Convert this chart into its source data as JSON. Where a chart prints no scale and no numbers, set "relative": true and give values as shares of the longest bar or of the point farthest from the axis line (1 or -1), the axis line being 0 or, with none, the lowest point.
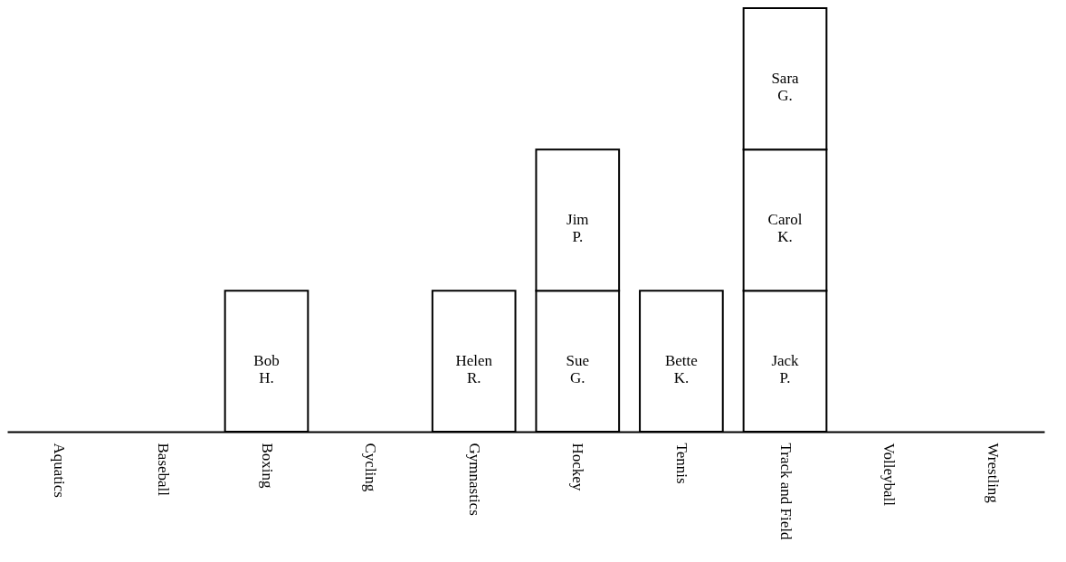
{
  "chart_data": {
    "type": "bar",
    "stacked": true,
    "relative": true,
    "categories": [
      "Aquatics",
      "Baseball",
      "Boxing",
      "Cycling",
      "Gymnastics",
      "Hockey",
      "Tennis",
      "Track and Field",
      "Volleyball",
      "Wrestling"
    ],
    "series": [
      {
        "color": "#ffffff",
        "values": [
          null,
          null,
          0.333,
          null,
          0.333,
          0.333,
          0.333,
          0.333,
          null,
          null
        ]
      },
      {
        "color": "#ffffff",
        "values": [
          null,
          null,
          null,
          null,
          null,
          0.333,
          null,
          0.333,
          null,
          null
        ]
      },
      {
        "color": "#ffffff",
        "values": [
          null,
          null,
          null,
          null,
          null,
          null,
          null,
          0.334,
          null,
          null
        ]
      }
    ],
    "annotations": [
      "Bob H.",
      "Helen R.",
      "Sue G.",
      "Jim P.",
      "Bette K.",
      "Jack P.",
      "Carol K.",
      "Sara G."
    ]
  }
}
